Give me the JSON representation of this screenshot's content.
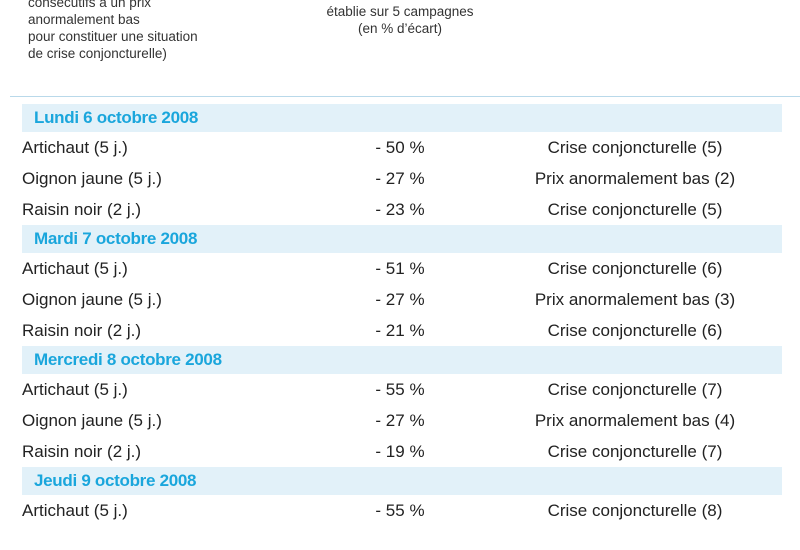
{
  "header": {
    "left_lines": [
      "consécutifs à un prix",
      "anormalement bas",
      "pour constituer une situation",
      "de crise conjoncturelle)"
    ],
    "mid_lines": [
      "établie sur 5 campagnes",
      "(en % d’écart)"
    ]
  },
  "days": [
    {
      "title": "Lundi 6 octobre 2008",
      "rows": [
        {
          "product": "Artichaut (5 j.)",
          "ecart": "- 50 %",
          "situation": "Crise conjoncturelle (5)"
        },
        {
          "product": "Oignon jaune (5 j.)",
          "ecart": "- 27 %",
          "situation": "Prix anormalement bas (2)"
        },
        {
          "product": "Raisin noir (2 j.)",
          "ecart": "- 23 %",
          "situation": "Crise conjoncturelle (5)"
        }
      ]
    },
    {
      "title": "Mardi 7 octobre 2008",
      "rows": [
        {
          "product": "Artichaut (5 j.)",
          "ecart": "- 51 %",
          "situation": "Crise conjoncturelle (6)"
        },
        {
          "product": "Oignon jaune (5 j.)",
          "ecart": "- 27 %",
          "situation": "Prix anormalement bas (3)"
        },
        {
          "product": "Raisin noir (2 j.)",
          "ecart": "- 21 %",
          "situation": "Crise conjoncturelle (6)"
        }
      ]
    },
    {
      "title": "Mercredi 8 octobre 2008",
      "rows": [
        {
          "product": "Artichaut (5 j.)",
          "ecart": "- 55 %",
          "situation": "Crise conjoncturelle (7)"
        },
        {
          "product": "Oignon jaune (5 j.)",
          "ecart": "- 27 %",
          "situation": "Prix anormalement bas (4)"
        },
        {
          "product": "Raisin noir (2 j.)",
          "ecart": "- 19 %",
          "situation": "Crise conjoncturelle (7)"
        }
      ]
    },
    {
      "title": "Jeudi 9 octobre 2008",
      "rows": [
        {
          "product": "Artichaut (5 j.)",
          "ecart": "- 55 %",
          "situation": "Crise conjoncturelle (8)"
        }
      ]
    }
  ],
  "colors": {
    "day_title": "#1aa6dc",
    "day_band": "#e2f1f9",
    "rule": "#b9d9ea",
    "text": "#222222"
  }
}
